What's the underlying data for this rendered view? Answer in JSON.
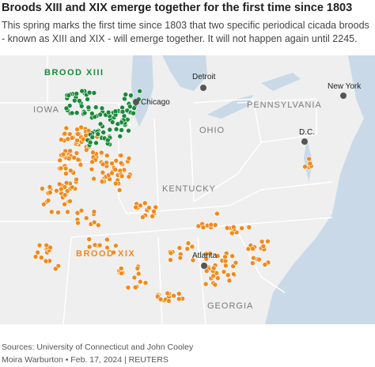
{
  "header": {
    "title": "Broods XIII and XIX emerge together for the first time since 1803",
    "subtitle": "This spring marks the first time since 1803 that two specific periodical cicada broods - known as XIII and XIX - will emerge together. It will not happen again until 2245."
  },
  "labels": {
    "states": [
      "IOWA",
      "OHIO",
      "PENNSYLVANIA",
      "KENTUCKY",
      "GEORGIA"
    ],
    "broods": [
      "BROOD XIII",
      "BROOD XIX"
    ],
    "cities": [
      "Detroit",
      "Chicago",
      "New York",
      "D.C.",
      "Atlanta"
    ]
  },
  "footer": {
    "sources": "Sources: University of Connecticut and John Cooley",
    "credit": "Moira Warburton • Feb. 17, 2024 | REUTERS"
  }
}
